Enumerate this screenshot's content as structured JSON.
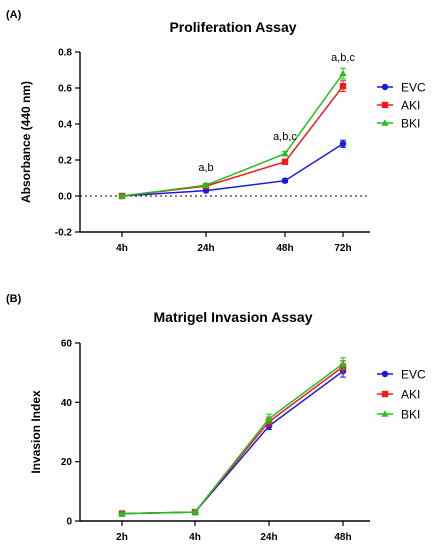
{
  "chart_data": [
    {
      "panel": "(A)",
      "type": "line",
      "title": "Proliferation Assay",
      "xlabel": "",
      "ylabel": "Absorbance (440 nm)",
      "categories": [
        "4h",
        "24h",
        "48h",
        "72h"
      ],
      "ylim": [
        -0.2,
        0.8
      ],
      "yticks": [
        "-0.2",
        "0.0",
        "0.2",
        "0.4",
        "0.6",
        "0.8"
      ],
      "reference_line_y": 0,
      "legend_position": "right",
      "series": [
        {
          "name": "EVC",
          "color": "#1a1adf",
          "marker": "circle",
          "values": [
            0.0,
            0.03,
            0.085,
            0.29
          ],
          "errors": [
            0.005,
            0.008,
            0.01,
            0.02
          ]
        },
        {
          "name": "AKI",
          "color": "#ee1c1c",
          "marker": "square",
          "values": [
            0.0,
            0.055,
            0.19,
            0.61
          ],
          "errors": [
            0.005,
            0.008,
            0.012,
            0.03
          ]
        },
        {
          "name": "BKI",
          "color": "#22c022",
          "marker": "triangle",
          "values": [
            0.0,
            0.06,
            0.235,
            0.68
          ],
          "errors": [
            0.005,
            0.008,
            0.012,
            0.03
          ]
        }
      ],
      "annotations": [
        {
          "text": "a,b",
          "category": "24h",
          "y": 0.14
        },
        {
          "text": "a,b,c",
          "category": "48h",
          "y": 0.31
        },
        {
          "text": "a,b,c",
          "category": "72h",
          "y": 0.75
        }
      ]
    },
    {
      "panel": "(B)",
      "type": "line",
      "title": "Matrigel Invasion Assay",
      "xlabel": "",
      "ylabel": "Invasion Index",
      "categories": [
        "2h",
        "4h",
        "24h",
        "48h"
      ],
      "ylim": [
        0,
        60
      ],
      "yticks": [
        "0",
        "20",
        "40",
        "60"
      ],
      "legend_position": "right",
      "series": [
        {
          "name": "EVC",
          "color": "#1a1adf",
          "marker": "circle",
          "values": [
            2.5,
            3.0,
            32.0,
            50.5
          ],
          "errors": [
            0.3,
            0.3,
            1.2,
            2.0
          ]
        },
        {
          "name": "AKI",
          "color": "#ee1c1c",
          "marker": "square",
          "values": [
            2.5,
            3.0,
            33.5,
            52.0
          ],
          "errors": [
            0.3,
            0.3,
            1.5,
            2.0
          ]
        },
        {
          "name": "BKI",
          "color": "#22c022",
          "marker": "triangle",
          "values": [
            2.5,
            3.0,
            34.5,
            53.0
          ],
          "errors": [
            0.3,
            0.3,
            1.5,
            2.0
          ]
        }
      ],
      "annotations": []
    }
  ]
}
